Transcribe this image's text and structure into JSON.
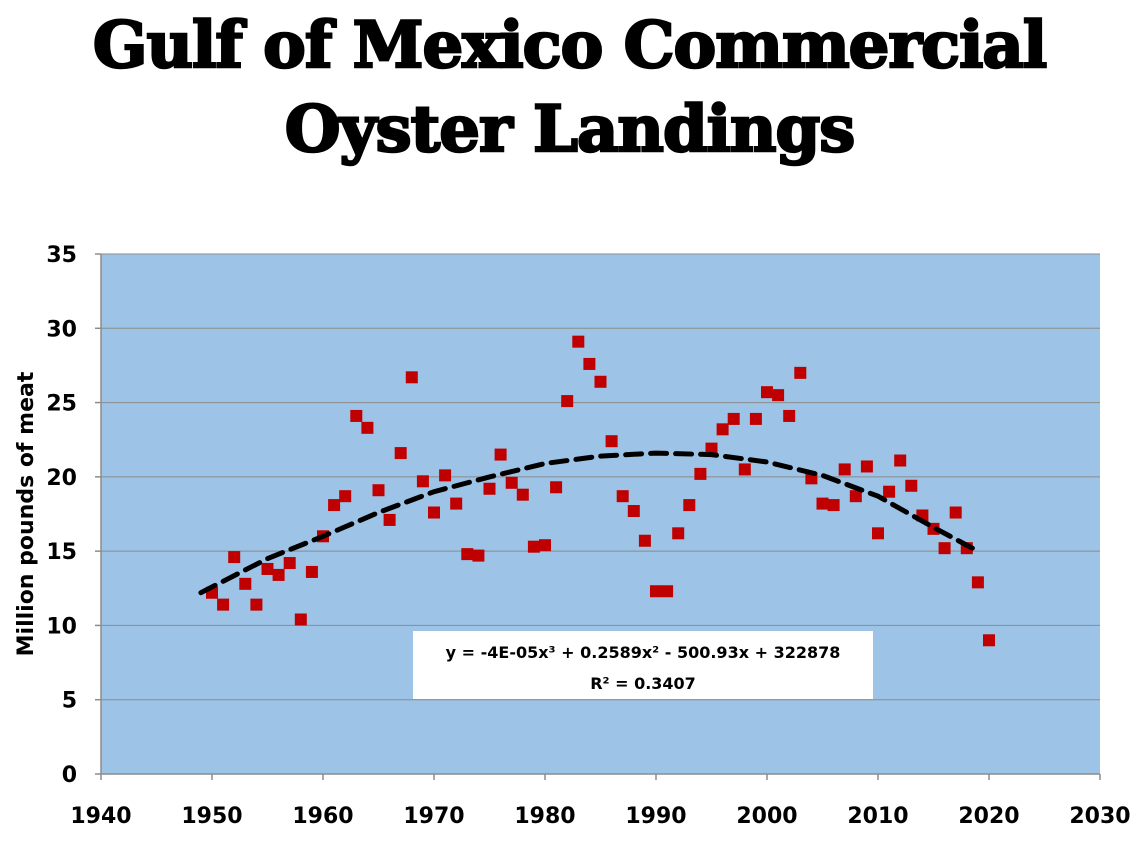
{
  "chart_data": {
    "type": "scatter",
    "title_lines": [
      "Gulf of Mexico Commercial",
      "Oyster Landings"
    ],
    "xlabel": "",
    "ylabel": "Million pounds of meat",
    "xlim": [
      1940,
      2030
    ],
    "ylim": [
      0,
      35
    ],
    "xticks": [
      1940,
      1950,
      1960,
      1970,
      1980,
      1990,
      2000,
      2010,
      2020,
      2030
    ],
    "yticks": [
      0,
      5,
      10,
      15,
      20,
      25,
      30,
      35
    ],
    "grid": "horizontal",
    "plot_background": "#9dc3e6",
    "marker_color": "#c00000",
    "trendline": {
      "style": "dashed",
      "color": "#000000",
      "x_range": [
        1949,
        2019
      ],
      "points": [
        {
          "x": 1949,
          "y": 12.2
        },
        {
          "x": 1955,
          "y": 14.5
        },
        {
          "x": 1960,
          "y": 16.0
        },
        {
          "x": 1965,
          "y": 17.6
        },
        {
          "x": 1970,
          "y": 19.0
        },
        {
          "x": 1975,
          "y": 20.0
        },
        {
          "x": 1980,
          "y": 20.9
        },
        {
          "x": 1985,
          "y": 21.4
        },
        {
          "x": 1990,
          "y": 21.6
        },
        {
          "x": 1995,
          "y": 21.5
        },
        {
          "x": 2000,
          "y": 21.0
        },
        {
          "x": 2005,
          "y": 20.1
        },
        {
          "x": 2010,
          "y": 18.7
        },
        {
          "x": 2015,
          "y": 16.6
        },
        {
          "x": 2019,
          "y": 15.0
        }
      ]
    },
    "equation": {
      "line1": "y = -4E-05x³ + 0.2589x² - 500.93x + 322878",
      "line2": "R² = 0.3407"
    },
    "series": [
      {
        "points": [
          {
            "x": 1950,
            "y": 12.2
          },
          {
            "x": 1951,
            "y": 11.4
          },
          {
            "x": 1952,
            "y": 14.6
          },
          {
            "x": 1953,
            "y": 12.8
          },
          {
            "x": 1954,
            "y": 11.4
          },
          {
            "x": 1955,
            "y": 13.8
          },
          {
            "x": 1956,
            "y": 13.4
          },
          {
            "x": 1957,
            "y": 14.2
          },
          {
            "x": 1958,
            "y": 10.4
          },
          {
            "x": 1959,
            "y": 13.6
          },
          {
            "x": 1960,
            "y": 16.0
          },
          {
            "x": 1961,
            "y": 18.1
          },
          {
            "x": 1962,
            "y": 18.7
          },
          {
            "x": 1963,
            "y": 24.1
          },
          {
            "x": 1964,
            "y": 23.3
          },
          {
            "x": 1965,
            "y": 19.1
          },
          {
            "x": 1966,
            "y": 17.1
          },
          {
            "x": 1967,
            "y": 21.6
          },
          {
            "x": 1968,
            "y": 26.7
          },
          {
            "x": 1969,
            "y": 19.7
          },
          {
            "x": 1970,
            "y": 17.6
          },
          {
            "x": 1971,
            "y": 20.1
          },
          {
            "x": 1972,
            "y": 18.2
          },
          {
            "x": 1973,
            "y": 14.8
          },
          {
            "x": 1974,
            "y": 14.7
          },
          {
            "x": 1975,
            "y": 19.2
          },
          {
            "x": 1976,
            "y": 21.5
          },
          {
            "x": 1977,
            "y": 19.6
          },
          {
            "x": 1978,
            "y": 18.8
          },
          {
            "x": 1979,
            "y": 15.3
          },
          {
            "x": 1980,
            "y": 15.4
          },
          {
            "x": 1981,
            "y": 19.3
          },
          {
            "x": 1982,
            "y": 25.1
          },
          {
            "x": 1983,
            "y": 29.1
          },
          {
            "x": 1984,
            "y": 27.6
          },
          {
            "x": 1985,
            "y": 26.4
          },
          {
            "x": 1986,
            "y": 22.4
          },
          {
            "x": 1987,
            "y": 18.7
          },
          {
            "x": 1988,
            "y": 17.7
          },
          {
            "x": 1989,
            "y": 15.7
          },
          {
            "x": 1990,
            "y": 12.3
          },
          {
            "x": 1991,
            "y": 12.3
          },
          {
            "x": 1992,
            "y": 16.2
          },
          {
            "x": 1993,
            "y": 18.1
          },
          {
            "x": 1994,
            "y": 20.2
          },
          {
            "x": 1995,
            "y": 21.9
          },
          {
            "x": 1996,
            "y": 23.2
          },
          {
            "x": 1997,
            "y": 23.9
          },
          {
            "x": 1998,
            "y": 20.5
          },
          {
            "x": 1999,
            "y": 23.9
          },
          {
            "x": 2000,
            "y": 25.7
          },
          {
            "x": 2001,
            "y": 25.5
          },
          {
            "x": 2002,
            "y": 24.1
          },
          {
            "x": 2003,
            "y": 27.0
          },
          {
            "x": 2004,
            "y": 19.9
          },
          {
            "x": 2005,
            "y": 18.2
          },
          {
            "x": 2006,
            "y": 18.1
          },
          {
            "x": 2007,
            "y": 20.5
          },
          {
            "x": 2008,
            "y": 18.7
          },
          {
            "x": 2009,
            "y": 20.7
          },
          {
            "x": 2010,
            "y": 16.2
          },
          {
            "x": 2011,
            "y": 19.0
          },
          {
            "x": 2012,
            "y": 21.1
          },
          {
            "x": 2013,
            "y": 19.4
          },
          {
            "x": 2014,
            "y": 17.4
          },
          {
            "x": 2015,
            "y": 16.5
          },
          {
            "x": 2016,
            "y": 15.2
          },
          {
            "x": 2017,
            "y": 17.6
          },
          {
            "x": 2018,
            "y": 15.2
          },
          {
            "x": 2019,
            "y": 12.9
          },
          {
            "x": 2020,
            "y": 9.0
          }
        ]
      }
    ]
  }
}
